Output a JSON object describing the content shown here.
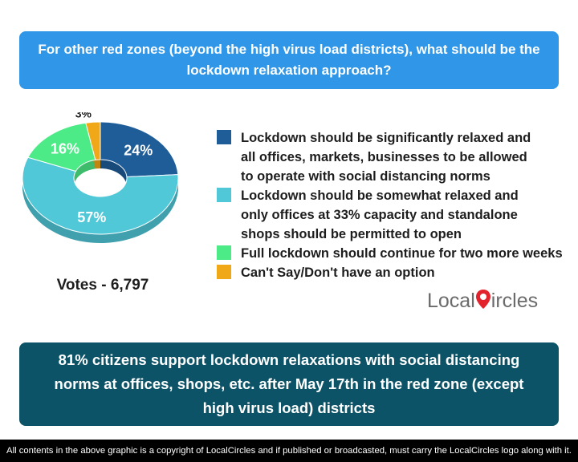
{
  "question": "For other red zones (beyond the high virus load districts), what should be the lockdown relaxation approach?",
  "votes_label": "Votes - 6,797",
  "chart_data": {
    "type": "pie",
    "donut": true,
    "slices": [
      {
        "label": "Lockdown should be significantly relaxed and\nall offices, markets, businesses to be allowed\nto operate with social distancing norms",
        "value": 24,
        "display": "24%",
        "color": "#1f5d99"
      },
      {
        "label": "Lockdown should be somewhat relaxed and\nonly offices at 33% capacity and standalone\nshops should be permitted to open",
        "value": 57,
        "display": "57%",
        "color": "#50c8d8"
      },
      {
        "label": "Full lockdown should continue for two more weeks",
        "value": 16,
        "display": "16%",
        "color": "#4deb87"
      },
      {
        "label": "Can't Say/Don't have an option",
        "value": 3,
        "display": "3%",
        "color": "#f0a818"
      }
    ]
  },
  "logo": {
    "part1": "Local",
    "letter": "C",
    "part2": "ircles",
    "mark_color": "#e3232b"
  },
  "conclusion": "81% citizens support lockdown relaxations with social distancing norms at offices, shops, etc. after May 17th in the red zone (except high virus load) districts",
  "footer": "All contents in the above graphic is a copyright of LocalCircles and if published or broadcasted, must carry the LocalCircles logo along with it."
}
